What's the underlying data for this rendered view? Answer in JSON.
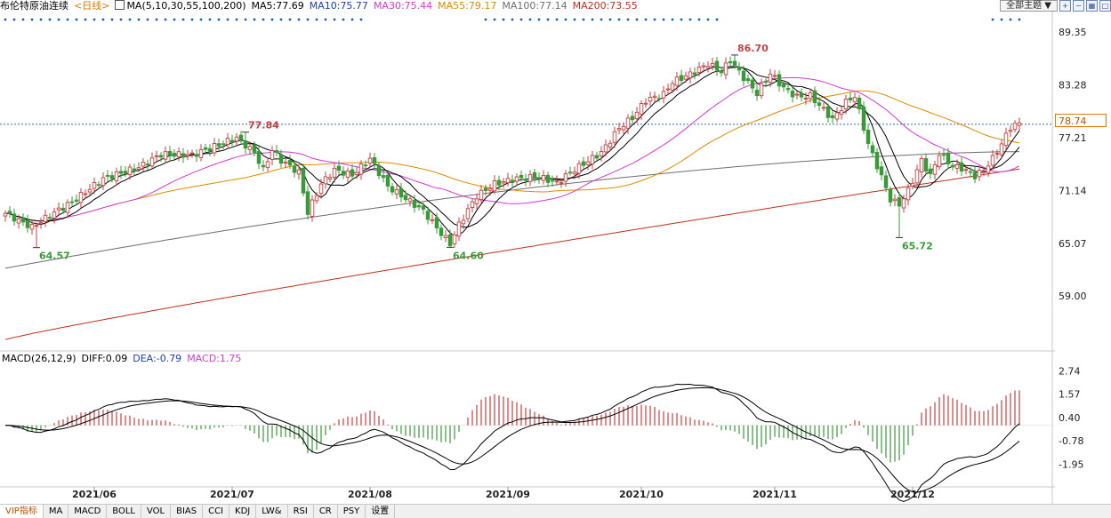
{
  "header": {
    "instrument": "布伦特原油连续",
    "period": "<日线>",
    "ma_params": "MA(5,10,30,55,100,200)",
    "ma5": "MA5:77.69",
    "ma10": "MA10:75.77",
    "ma30": "MA30:75.44",
    "ma55": "MA55:79.17",
    "ma100": "MA100:77.14",
    "ma200": "MA200:73.55"
  },
  "toolbar": {
    "theme_select": "全部主题",
    "theme_arrow": "▼"
  },
  "price_tag": "78.74",
  "macd_header": {
    "name": "MACD(26,12,9)",
    "diff": "DIFF:0.09",
    "dea": "DEA:-0.79",
    "macd": "MACD:1.75"
  },
  "tabs": [
    "VIP指标",
    "MA",
    "MACD",
    "BOLL",
    "VOL",
    "BIAS",
    "CCI",
    "KDJ",
    "LW&",
    "RSI",
    "CR",
    "PSY",
    "设置"
  ],
  "colors": {
    "up": "#c84040",
    "down": "#3a9a3a",
    "ma5": "#000000",
    "ma10": "#000000",
    "ma30": "#d43ad4",
    "ma55": "#e08a00",
    "ma100": "#6e6e6e",
    "ma200": "#c03020",
    "diff": "#000000",
    "dea": "#000000",
    "dot": "#1a5fb4",
    "crosshair": "#2a6fb0"
  },
  "chart_data": [
    {
      "type": "candlestick",
      "title": "布伦特原油连续",
      "ylim": [
        53.0,
        92.0
      ],
      "yticks": [
        "89.35",
        "83.28",
        "77.21",
        "71.14",
        "65.07",
        "59.00"
      ],
      "xlabels": [
        "2021/06",
        "2021/07",
        "2021/08",
        "2021/09",
        "2021/10",
        "2021/11",
        "2021/12"
      ],
      "current_price": 78.74,
      "annotations": [
        {
          "label": "77.84",
          "value": 77.84,
          "date": "2021/07/06"
        },
        {
          "label": "64.57",
          "value": 64.57,
          "date": "2021/05/21"
        },
        {
          "label": "64.60",
          "value": 64.6,
          "date": "2021/08/20"
        },
        {
          "label": "86.70",
          "value": 86.7,
          "date": "2021/10/25"
        },
        {
          "label": "65.72",
          "value": 65.72,
          "date": "2021/12/02"
        }
      ],
      "close_anchors": [
        [
          0,
          68.5
        ],
        [
          6,
          66.9
        ],
        [
          10,
          68.3
        ],
        [
          15,
          69.8
        ],
        [
          22,
          72.5
        ],
        [
          30,
          73.8
        ],
        [
          35,
          75.3
        ],
        [
          42,
          75.2
        ],
        [
          47,
          76.2
        ],
        [
          52,
          77.2
        ],
        [
          56,
          75.5
        ],
        [
          58,
          73.5
        ],
        [
          60,
          75.8
        ],
        [
          62,
          74.6
        ],
        [
          66,
          73.2
        ],
        [
          68,
          68.6
        ],
        [
          71,
          71.9
        ],
        [
          74,
          73.5
        ],
        [
          78,
          72.9
        ],
        [
          82,
          74.8
        ],
        [
          86,
          71.6
        ],
        [
          90,
          70.2
        ],
        [
          94,
          68.8
        ],
        [
          98,
          66.2
        ],
        [
          100,
          65.0
        ],
        [
          102,
          67.2
        ],
        [
          104,
          68.9
        ],
        [
          106,
          70.5
        ],
        [
          110,
          71.9
        ],
        [
          115,
          72.5
        ],
        [
          120,
          72.7
        ],
        [
          124,
          72.0
        ],
        [
          127,
          73.2
        ],
        [
          130,
          74.2
        ],
        [
          134,
          75.5
        ],
        [
          138,
          78.3
        ],
        [
          141,
          79.5
        ],
        [
          144,
          81.5
        ],
        [
          148,
          82.2
        ],
        [
          150,
          83.6
        ],
        [
          154,
          84.5
        ],
        [
          158,
          85.7
        ],
        [
          161,
          84.8
        ],
        [
          163,
          86.1
        ],
        [
          166,
          84.1
        ],
        [
          169,
          82.3
        ],
        [
          172,
          84.6
        ],
        [
          175,
          82.9
        ],
        [
          178,
          81.9
        ],
        [
          181,
          82.0
        ],
        [
          184,
          80.4
        ],
        [
          186,
          79.3
        ],
        [
          189,
          81.3
        ],
        [
          191,
          82.0
        ],
        [
          194,
          76.5
        ],
        [
          197,
          72.7
        ],
        [
          199,
          70.1
        ],
        [
          201,
          69.5
        ],
        [
          203,
          71.1
        ],
        [
          206,
          74.6
        ],
        [
          208,
          72.8
        ],
        [
          210,
          75.4
        ],
        [
          213,
          73.9
        ],
        [
          215,
          73.7
        ],
        [
          218,
          72.8
        ],
        [
          220,
          73.5
        ],
        [
          222,
          74.8
        ],
        [
          224,
          76.5
        ],
        [
          226,
          78.4
        ],
        [
          228,
          78.9
        ]
      ],
      "series": [
        {
          "name": "MA5"
        },
        {
          "name": "MA10"
        },
        {
          "name": "MA30"
        },
        {
          "name": "MA55"
        },
        {
          "name": "MA100"
        },
        {
          "name": "MA200"
        }
      ]
    },
    {
      "type": "bar",
      "title": "MACD(26,12,9)",
      "ylim": [
        -3.1,
        3.3
      ],
      "yticks": [
        "2.74",
        "1.57",
        "0.40",
        "-0.78",
        "-1.95"
      ],
      "series": [
        {
          "name": "DIFF"
        },
        {
          "name": "DEA"
        },
        {
          "name": "MACD"
        }
      ],
      "last": {
        "DIFF": 0.09,
        "DEA": -0.79,
        "MACD": 1.75
      }
    }
  ]
}
